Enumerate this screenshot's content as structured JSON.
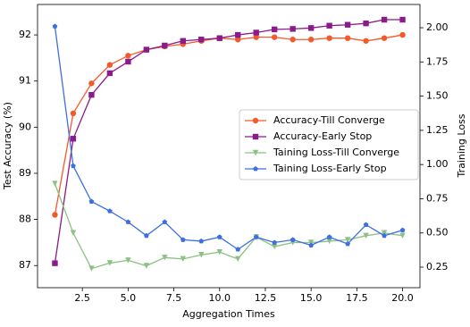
{
  "chart_data": {
    "type": "line",
    "x_label": "Aggregation Times",
    "y_label": "Test Accuracy (%)",
    "y2_label": "Training Loss",
    "x": [
      1,
      2,
      3,
      4,
      5,
      6,
      7,
      8,
      9,
      10,
      11,
      12,
      13,
      14,
      15,
      16,
      17,
      18,
      19,
      20
    ],
    "xlim": [
      0.05,
      20.95
    ],
    "xticks": [
      {
        "value": 2.5,
        "label": "2.5"
      },
      {
        "value": 5,
        "label": "5.0"
      },
      {
        "value": 7.5,
        "label": "7.5"
      },
      {
        "value": 10,
        "label": "10.0"
      },
      {
        "value": 12.5,
        "label": "12.5"
      },
      {
        "value": 15,
        "label": "15.0"
      },
      {
        "value": 17.5,
        "label": "17.5"
      },
      {
        "value": 20,
        "label": "20.0"
      }
    ],
    "ylim": [
      86.52,
      92.66
    ],
    "yticks": [
      87,
      88,
      89,
      90,
      91,
      92
    ],
    "y2lim": [
      0.1,
      2.17
    ],
    "y2ticks": [
      {
        "value": 0.25,
        "label": "0.25"
      },
      {
        "value": 0.5,
        "label": "0.50"
      },
      {
        "value": 0.75,
        "label": "0.75"
      },
      {
        "value": 1.0,
        "label": "1.00"
      },
      {
        "value": 1.25,
        "label": "1.25"
      },
      {
        "value": 1.5,
        "label": "1.50"
      },
      {
        "value": 1.75,
        "label": "1.75"
      },
      {
        "value": 2.0,
        "label": "2.00"
      }
    ],
    "legend": "center right",
    "series": [
      {
        "name": "Accuracy-Till Converge",
        "color": "#f4592a",
        "marker": "circle",
        "values": [
          88.1,
          90.3,
          90.95,
          91.35,
          91.55,
          91.68,
          91.75,
          91.8,
          91.87,
          91.93,
          91.9,
          91.95,
          91.95,
          91.9,
          91.9,
          91.93,
          91.93,
          91.87,
          91.93,
          92.0
        ]
      },
      {
        "name": "Accuracy-Early Stop",
        "color": "#8b1a8b",
        "marker": "square",
        "values": [
          87.05,
          89.75,
          90.7,
          91.17,
          91.42,
          91.68,
          91.77,
          91.87,
          91.9,
          91.93,
          92.0,
          92.05,
          92.12,
          92.13,
          92.15,
          92.2,
          92.22,
          92.25,
          92.33,
          92.33
        ]
      },
      {
        "name": "Taining Loss-Till Converge",
        "color": "#8cc084",
        "marker": "triangle",
        "axis": "y2",
        "values": [
          0.86,
          0.5,
          0.24,
          0.28,
          0.3,
          0.26,
          0.32,
          0.31,
          0.34,
          0.36,
          0.31,
          0.47,
          0.4,
          0.43,
          0.43,
          0.44,
          0.45,
          0.48,
          0.5,
          0.48
        ]
      },
      {
        "name": "Taining Loss-Early Stop",
        "color": "#3d6fe0",
        "marker": "pentagon",
        "axis": "y2",
        "values": [
          2.01,
          0.99,
          0.73,
          0.66,
          0.58,
          0.48,
          0.58,
          0.45,
          0.44,
          0.47,
          0.38,
          0.47,
          0.43,
          0.45,
          0.41,
          0.47,
          0.42,
          0.56,
          0.48,
          0.52
        ]
      }
    ]
  }
}
